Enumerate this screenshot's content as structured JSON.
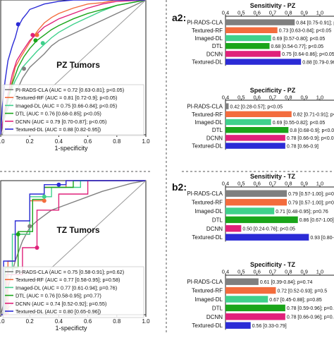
{
  "roc_panels": [
    {
      "id": "pz",
      "panel_label": "PZ Tumors",
      "xlabel": "1-specificity",
      "x_ticks": [
        "0.0",
        "0.2",
        "0.4",
        "0.6",
        "0.8",
        "1.0"
      ],
      "legend": [
        {
          "text": "PI-RADS-CLA (AUC = 0.72 [0.63-0.81]; p<0.05)",
          "color": "#7f7f7f"
        },
        {
          "text": "Textured-RF (AUC = 0.81 [0.72-0.9]; p<0.05)",
          "color": "#f36c3d"
        },
        {
          "text": "Imaged-DL (AUC = 0.75 [0.66-0.84]; p<0.05)",
          "color": "#3fd18c"
        },
        {
          "text": "DTL (AUC = 0.76 [0.68-0.85]; p<0.05)",
          "color": "#1aa51a"
        },
        {
          "text": "DCNN (AUC = 0.79 [0.70-0.87]; p<0.05)",
          "color": "#e0217a"
        },
        {
          "text": "Textured-DL (AUC = 0.88 [0.82-0.95])",
          "color": "#2b2bd6"
        }
      ]
    },
    {
      "id": "tz",
      "panel_label": "TZ Tumors",
      "xlabel": "1-specificty",
      "x_ticks": [
        "0.0",
        "0.2",
        "0.4",
        "0.6",
        "0.8",
        "1.0"
      ],
      "legend": [
        {
          "text": "PI-RADS-CLA (AUC = 0.75 [0.58-0.91]; p=0.62)",
          "color": "#7f7f7f"
        },
        {
          "text": "Textured-RF (AUC = 0.77 [0.58-0.95]; p=0.58)",
          "color": "#f36c3d"
        },
        {
          "text": "Imaged-DL (AUC = 0.77 [0.61-0.94]; p=0.76)",
          "color": "#3fd18c"
        },
        {
          "text": "DTL (AUC = 0.76 [0.58-0.95]; p=0.77)",
          "color": "#1aa51a"
        },
        {
          "text": "DCNN (AUC = 0.74 [0.52-0.92]; p=0.55)",
          "color": "#e0217a"
        },
        {
          "text": "Textured-DL (AUC = 0.80 [0.65-0.96])",
          "color": "#2b2bd6"
        }
      ]
    }
  ],
  "bar_panels": [
    {
      "panel_label": "a2:"
    },
    {
      "panel_label": "b2:"
    }
  ],
  "colors": {
    "PI-RADS-CLA": "#7f7f7f",
    "Textured-RF": "#f36c3d",
    "Imaged-DL": "#3fd18c",
    "DTL": "#1aa51a",
    "DCNN": "#e0217a",
    "Textured-DL": "#2b2bd6"
  },
  "chart_data": [
    {
      "type": "line",
      "title": "PZ Tumors",
      "xlabel": "1-specificity",
      "xlim": [
        0,
        1.0
      ],
      "series": [
        {
          "name": "PI-RADS-CLA",
          "x": [
            0,
            0.02,
            0.05,
            0.1,
            0.15,
            0.2,
            0.25,
            0.3,
            0.35,
            0.4,
            0.5,
            0.6,
            0.7,
            0.8,
            0.9,
            1.0
          ],
          "y": [
            0,
            0.1,
            0.2,
            0.3,
            0.42,
            0.5,
            0.55,
            0.6,
            0.66,
            0.7,
            0.75,
            0.8,
            0.85,
            0.9,
            0.95,
            1.0
          ]
        },
        {
          "name": "Textured-RF",
          "x": [
            0,
            0.02,
            0.05,
            0.08,
            0.1,
            0.14,
            0.18,
            0.22,
            0.26,
            0.3,
            0.35,
            0.4,
            0.5,
            0.6,
            0.7,
            0.8,
            1.0
          ],
          "y": [
            0,
            0.12,
            0.28,
            0.4,
            0.5,
            0.58,
            0.65,
            0.72,
            0.78,
            0.83,
            0.87,
            0.9,
            0.94,
            0.97,
            0.98,
            1.0,
            1.0
          ]
        },
        {
          "name": "Imaged-DL",
          "x": [
            0,
            0.03,
            0.06,
            0.1,
            0.15,
            0.2,
            0.25,
            0.3,
            0.35,
            0.4,
            0.5,
            0.6,
            0.7,
            0.8,
            0.9,
            1.0
          ],
          "y": [
            0,
            0.15,
            0.3,
            0.4,
            0.5,
            0.56,
            0.62,
            0.67,
            0.72,
            0.76,
            0.82,
            0.87,
            0.92,
            0.96,
            0.98,
            1.0
          ]
        },
        {
          "name": "DTL",
          "x": [
            0,
            0.02,
            0.05,
            0.08,
            0.12,
            0.16,
            0.2,
            0.25,
            0.3,
            0.35,
            0.4,
            0.5,
            0.6,
            0.7,
            0.8,
            0.9,
            1.0
          ],
          "y": [
            0,
            0.12,
            0.26,
            0.38,
            0.5,
            0.58,
            0.64,
            0.7,
            0.74,
            0.78,
            0.81,
            0.86,
            0.9,
            0.93,
            0.96,
            0.98,
            1.0
          ]
        },
        {
          "name": "DCNN",
          "x": [
            0,
            0.02,
            0.05,
            0.08,
            0.11,
            0.15,
            0.2,
            0.25,
            0.3,
            0.35,
            0.4,
            0.5,
            0.6,
            0.7,
            0.8,
            1.0
          ],
          "y": [
            0,
            0.14,
            0.3,
            0.45,
            0.55,
            0.62,
            0.7,
            0.75,
            0.8,
            0.83,
            0.86,
            0.9,
            0.94,
            0.97,
            0.99,
            1.0
          ]
        },
        {
          "name": "Textured-DL",
          "x": [
            0,
            0.01,
            0.03,
            0.05,
            0.08,
            0.1,
            0.12,
            0.15,
            0.18,
            0.2,
            0.25,
            0.3,
            0.35,
            0.4,
            0.5,
            0.6,
            0.7,
            1.0
          ],
          "y": [
            0,
            0.2,
            0.4,
            0.55,
            0.66,
            0.72,
            0.8,
            0.86,
            0.9,
            0.93,
            0.95,
            0.97,
            0.98,
            0.99,
            1.0,
            1.0,
            1.0,
            1.0
          ]
        },
        {
          "name": "chance",
          "x": [
            0,
            1.0
          ],
          "y": [
            0,
            1.0
          ]
        }
      ],
      "markers": [
        {
          "series": "PI-RADS-CLA",
          "x": 0.16,
          "y": 0.49
        },
        {
          "series": "Textured-RF",
          "x": 0.25,
          "y": 0.74
        },
        {
          "series": "Imaged-DL",
          "x": 0.29,
          "y": 0.68
        },
        {
          "series": "DTL",
          "x": 0.24,
          "y": 0.7
        },
        {
          "series": "DCNN",
          "x": 0.22,
          "y": 0.74
        },
        {
          "series": "Textured-DL",
          "x": 0.12,
          "y": 0.82
        }
      ]
    },
    {
      "type": "line",
      "title": "TZ Tumors",
      "xlabel": "1-specificty",
      "xlim": [
        0,
        1.0
      ],
      "series": [
        {
          "name": "PI-RADS-CLA",
          "x": [
            0,
            0.05,
            0.1,
            0.15,
            0.2,
            0.25,
            0.3,
            0.35,
            0.4,
            0.5,
            0.6,
            0.7,
            0.8,
            0.9,
            1.0
          ],
          "y": [
            0,
            0.2,
            0.4,
            0.55,
            0.65,
            0.7,
            0.74,
            0.78,
            0.8,
            0.84,
            0.88,
            0.92,
            0.95,
            0.98,
            1.0
          ]
        },
        {
          "name": "Textured-RF",
          "x": [
            0,
            0.05,
            0.05,
            0.1,
            0.1,
            0.2,
            0.2,
            0.3,
            0.3,
            0.45,
            0.45,
            1.0
          ],
          "y": [
            0,
            0,
            0.4,
            0.4,
            0.6,
            0.6,
            0.85,
            0.85,
            0.95,
            0.95,
            1.0,
            1.0
          ]
        },
        {
          "name": "Imaged-DL",
          "x": [
            0,
            0.02,
            0.02,
            0.08,
            0.08,
            0.2,
            0.2,
            0.35,
            0.35,
            0.55,
            0.55,
            1.0
          ],
          "y": [
            0,
            0,
            0.3,
            0.3,
            0.6,
            0.6,
            0.88,
            0.88,
            0.95,
            0.95,
            1.0,
            1.0
          ]
        },
        {
          "name": "DTL",
          "x": [
            0,
            0.03,
            0.03,
            0.12,
            0.12,
            0.22,
            0.22,
            0.3,
            0.3,
            0.5,
            0.5,
            1.0
          ],
          "y": [
            0,
            0,
            0.35,
            0.35,
            0.62,
            0.62,
            0.86,
            0.86,
            0.95,
            0.95,
            1.0,
            1.0
          ]
        },
        {
          "name": "DCNN",
          "x": [
            0,
            0.04,
            0.04,
            0.15,
            0.15,
            0.25,
            0.25,
            0.4,
            0.4,
            0.6,
            0.6,
            1.0
          ],
          "y": [
            0,
            0,
            0.3,
            0.3,
            0.5,
            0.5,
            0.78,
            0.78,
            0.9,
            0.9,
            1.0,
            1.0
          ]
        },
        {
          "name": "Textured-DL",
          "x": [
            0,
            0.02,
            0.02,
            0.1,
            0.1,
            0.2,
            0.2,
            0.3,
            0.3,
            0.45,
            0.45,
            1.0
          ],
          "y": [
            0,
            0,
            0.4,
            0.4,
            0.7,
            0.7,
            0.9,
            0.9,
            0.97,
            0.97,
            1.0,
            1.0
          ]
        },
        {
          "name": "chance",
          "x": [
            0,
            1.0
          ],
          "y": [
            0,
            1.0
          ]
        }
      ],
      "markers": [
        {
          "series": "PI-RADS-CLA",
          "x": 0.2,
          "y": 0.66
        },
        {
          "series": "Textured-RF",
          "x": 0.3,
          "y": 0.85
        },
        {
          "series": "Imaged-DL",
          "x": 0.3,
          "y": 0.88
        },
        {
          "series": "DTL",
          "x": 0.12,
          "y": 0.6
        },
        {
          "series": "DCNN",
          "x": 0.25,
          "y": 0.5
        },
        {
          "series": "Textured-DL",
          "x": 0.4,
          "y": 0.97
        }
      ]
    },
    {
      "type": "bar",
      "title": "Sensitivity - PZ",
      "xlim": [
        0.4,
        1.0
      ],
      "x_ticks": [
        "0.4",
        "0.5",
        "0.6",
        "0.7",
        "0.8",
        "0.9",
        "1.0"
      ],
      "categories": [
        "PI-RADS-CLA",
        "Textured-RF",
        "Imaged-DL",
        "DTL",
        "DCNN",
        "Textured-DL"
      ],
      "values": [
        0.84,
        0.73,
        0.69,
        0.68,
        0.75,
        0.88
      ],
      "labels": [
        "0.84 [0.75-0.91]; p<0.05",
        "0.73 [0.63-0.84]; p<0.05",
        "0.69 [0.57-0.80]; p<0.05",
        "0.68 [0.54-0.77]; p<0.05",
        "0.75 [0.64-0.86]; p<0.05",
        "0.88 [0.79-0.96]"
      ]
    },
    {
      "type": "bar",
      "title": "Specificity - PZ",
      "xlim": [
        0.4,
        1.0
      ],
      "x_ticks": [
        "0.4",
        "0.5",
        "0.6",
        "0.7",
        "0.8",
        "0.9",
        "1.0"
      ],
      "categories": [
        "PI-RADS-CLA",
        "Textured-RF",
        "Imaged-DL",
        "DTL",
        "DCNN",
        "Textured-DL"
      ],
      "values": [
        0.42,
        0.82,
        0.69,
        0.8,
        0.78,
        0.78
      ],
      "labels": [
        "0.42 [0.28-0.57]; p<0.05",
        "0.82 [0.71-0.91]; p<0.05",
        "0.69 [0.55-0.82]; p<0.05",
        "0.8 [0.68-0.9]; p<0.05",
        "0.78 [0.66-0.9]; p<0.05",
        "0.78 [0.66-0.9]"
      ]
    },
    {
      "type": "bar",
      "title": "Sensitivity - TZ",
      "xlim": [
        0.4,
        1.0
      ],
      "x_ticks": [
        "0.4",
        "0.5",
        "0.6",
        "0.7",
        "0.8",
        "0.9",
        "1.0"
      ],
      "categories": [
        "PI-RADS-CLA",
        "Textured-RF",
        "Imaged-DL",
        "DTL",
        "DCNN",
        "Textured-DL"
      ],
      "values": [
        0.79,
        0.79,
        0.71,
        0.86,
        0.5,
        0.93
      ],
      "labels": [
        "0.79 [0.57-1.00]; p=0.62",
        "0.79 [0.57-1.00]; p=0.58",
        "0.71 [0.48-0.95]; p=0.76",
        "0.86 [0.67-1.00]; p=0.77",
        "0.50 [0.24-0.76]; p<0.05",
        "0.93 [0.80-1.00]"
      ]
    },
    {
      "type": "bar",
      "title": "Specificity - TZ",
      "xlim": [
        0.4,
        1.0
      ],
      "x_ticks": [
        "0.4",
        "0.5",
        "0.6",
        "0.7",
        "0.8",
        "0.9",
        "1.0"
      ],
      "categories": [
        "PI-RADS-CLA",
        "Textured-RF",
        "Imaged-DL",
        "DTL",
        "DCNN",
        "Textured-DL"
      ],
      "values": [
        0.61,
        0.72,
        0.67,
        0.78,
        0.78,
        0.56
      ],
      "labels": [
        "0.61 [0.39-0.84]; p=0.74",
        "0.72 [0.52-0.93]; p=0.5",
        "0.67 [0.45-0.88]; p=0.85",
        "0.78 [0.59-0.96]; p=0.62",
        "0.78 [0.66-0.96]; p=0.45",
        "0.56 [0.33-0.79]"
      ]
    }
  ]
}
